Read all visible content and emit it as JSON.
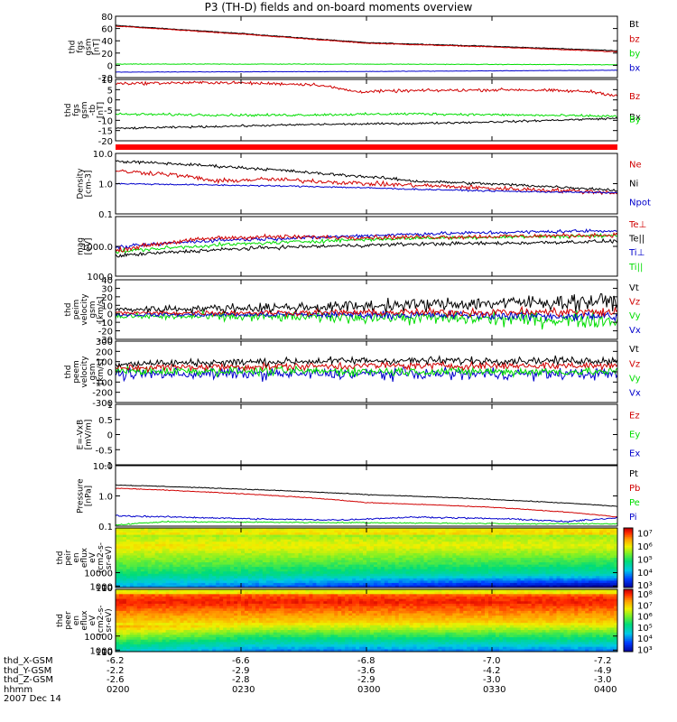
{
  "title": "P3 (TH-D) fields and on-board moments overview",
  "colors": {
    "black": "#000000",
    "red": "#d00000",
    "green": "#00dd00",
    "blue": "#0000cc",
    "bar": "#ff0000"
  },
  "chart_data": [
    {
      "type": "line",
      "name": "fgs_gsm",
      "ylabel": [
        "thd",
        "fgs",
        "gsm",
        "[nT]"
      ],
      "ylim": [
        -20,
        80
      ],
      "yticks": [
        -20,
        0,
        20,
        40,
        60,
        80
      ],
      "legend": [
        "Bt",
        "bz",
        "by",
        "bx"
      ],
      "series": [
        {
          "name": "Bt",
          "color": "black",
          "pts": [
            [
              0,
              65
            ],
            [
              0.25,
              52
            ],
            [
              0.5,
              37
            ],
            [
              0.75,
              31
            ],
            [
              1,
              24
            ]
          ],
          "noise": 0.5
        },
        {
          "name": "bz",
          "color": "red",
          "pts": [
            [
              0,
              64
            ],
            [
              0.25,
              51
            ],
            [
              0.5,
              36
            ],
            [
              0.75,
              30
            ],
            [
              1,
              22
            ]
          ],
          "noise": 0.5
        },
        {
          "name": "by",
          "color": "green",
          "pts": [
            [
              0,
              2
            ],
            [
              0.5,
              2
            ],
            [
              1,
              1
            ]
          ],
          "noise": 0.4
        },
        {
          "name": "bx",
          "color": "blue",
          "pts": [
            [
              0,
              -11
            ],
            [
              0.5,
              -10
            ],
            [
              1,
              -8
            ]
          ],
          "noise": 0.3
        }
      ]
    },
    {
      "type": "line",
      "name": "fgs_gse",
      "ylabel": [
        "thd",
        "fgs",
        "gsm",
        "-tb",
        "[nT]"
      ],
      "ylim": [
        -20,
        10
      ],
      "yticks": [
        -20,
        -15,
        -10,
        -5,
        0,
        5,
        10
      ],
      "legend": [
        "Bz",
        "Bx",
        "By"
      ],
      "series": [
        {
          "name": "Bz",
          "color": "red",
          "pts": [
            [
              0,
              8
            ],
            [
              0.2,
              8.5
            ],
            [
              0.4,
              7.5
            ],
            [
              0.48,
              4
            ],
            [
              0.6,
              4.5
            ],
            [
              0.8,
              5
            ],
            [
              0.95,
              4
            ],
            [
              1,
              2
            ]
          ],
          "noise": 0.6
        },
        {
          "name": "By",
          "color": "green",
          "pts": [
            [
              0,
              -7
            ],
            [
              0.3,
              -7.5
            ],
            [
              0.6,
              -6.8
            ],
            [
              1,
              -8
            ]
          ],
          "noise": 0.5
        },
        {
          "name": "Bx",
          "color": "black",
          "pts": [
            [
              0,
              -14
            ],
            [
              0.2,
              -13
            ],
            [
              0.4,
              -12
            ],
            [
              0.6,
              -11.5
            ],
            [
              0.8,
              -10.5
            ],
            [
              1,
              -9
            ]
          ],
          "noise": 0.4
        }
      ]
    },
    {
      "type": "line",
      "name": "density",
      "log": true,
      "ylabel": [
        "Density",
        "[cm-3]"
      ],
      "ylim": [
        0.1,
        10
      ],
      "yticks": [
        0.1,
        1.0,
        10.0
      ],
      "legend": [
        "Ne",
        "Ni",
        "Npot"
      ],
      "series": [
        {
          "name": "Ni",
          "color": "black",
          "pts": [
            [
              0,
              5.5
            ],
            [
              0.2,
              3.8
            ],
            [
              0.4,
              2.2
            ],
            [
              0.6,
              1.2
            ],
            [
              0.8,
              0.9
            ],
            [
              1,
              0.6
            ]
          ],
          "noise": 0.04
        },
        {
          "name": "Ne",
          "color": "red",
          "pts": [
            [
              0,
              2.6
            ],
            [
              0.1,
              2.1
            ],
            [
              0.2,
              1.2
            ],
            [
              0.3,
              1.4
            ],
            [
              0.5,
              1.0
            ],
            [
              0.75,
              0.7
            ],
            [
              1,
              0.5
            ]
          ],
          "noise": 0.06
        },
        {
          "name": "Npot",
          "color": "blue",
          "pts": [
            [
              0,
              1.0
            ],
            [
              0.2,
              0.9
            ],
            [
              0.4,
              0.8
            ],
            [
              0.6,
              0.65
            ],
            [
              0.8,
              0.55
            ],
            [
              1,
              0.5
            ]
          ],
          "noise": 0.02
        }
      ]
    },
    {
      "type": "line",
      "name": "temperature",
      "log": true,
      "ylabel": [
        "mag",
        "[eV]"
      ],
      "ylim": [
        100,
        10000
      ],
      "yticks": [
        100,
        1000
      ],
      "legend": [
        "Te⊥",
        "Te||",
        "Ti⊥",
        "Ti||"
      ],
      "series": [
        {
          "name": "Te||",
          "color": "black",
          "pts": [
            [
              0,
              480
            ],
            [
              0.3,
              900
            ],
            [
              0.6,
              1200
            ],
            [
              0.8,
              1300
            ],
            [
              1,
              1500
            ]
          ],
          "noise": 0.05
        },
        {
          "name": "Ti⊥",
          "color": "blue",
          "pts": [
            [
              0,
              900
            ],
            [
              0.2,
              1600
            ],
            [
              0.4,
              2000
            ],
            [
              0.6,
              2600
            ],
            [
              0.8,
              3000
            ],
            [
              1,
              3400
            ]
          ],
          "noise": 0.05
        },
        {
          "name": "Ti||",
          "color": "green",
          "pts": [
            [
              0,
              650
            ],
            [
              0.2,
              1100
            ],
            [
              0.4,
              1500
            ],
            [
              0.6,
              1900
            ],
            [
              0.8,
              2100
            ],
            [
              1,
              2300
            ]
          ],
          "noise": 0.05
        },
        {
          "name": "Te⊥",
          "color": "red",
          "pts": [
            [
              0,
              700
            ],
            [
              0.2,
              1900
            ],
            [
              0.3,
              2100
            ],
            [
              0.5,
              2000
            ],
            [
              0.7,
              2100
            ],
            [
              1,
              2400
            ]
          ],
          "noise": 0.06
        }
      ]
    },
    {
      "type": "line",
      "name": "velocity_dsl",
      "ylabel": [
        "thd",
        "peim",
        "velocity",
        "gsm",
        "[km/s]"
      ],
      "ylim": [
        -30,
        40
      ],
      "yticks": [
        -30,
        -20,
        -10,
        0,
        10,
        20,
        30,
        40
      ],
      "legend": [
        "Vt",
        "Vz",
        "Vy",
        "Vx"
      ],
      "series": [
        {
          "name": "Vy",
          "color": "green",
          "pts": [
            [
              0,
              -3
            ],
            [
              0.5,
              -4
            ],
            [
              0.9,
              -7
            ],
            [
              1,
              -8
            ]
          ],
          "noise": 5
        },
        {
          "name": "Vx",
          "color": "blue",
          "pts": [
            [
              0,
              -1
            ],
            [
              0.5,
              -1
            ],
            [
              1,
              -3
            ]
          ],
          "noise": 3
        },
        {
          "name": "Vz",
          "color": "red",
          "pts": [
            [
              0,
              1
            ],
            [
              0.5,
              1.5
            ],
            [
              1,
              2
            ]
          ],
          "noise": 3
        },
        {
          "name": "Vt",
          "color": "black",
          "pts": [
            [
              0,
              5
            ],
            [
              0.4,
              8
            ],
            [
              0.7,
              12
            ],
            [
              1,
              15
            ]
          ],
          "noise": 5
        }
      ]
    },
    {
      "type": "line",
      "name": "velocity_gsm",
      "ylabel": [
        "thd",
        "peem",
        "velocity",
        "gsm",
        "[km/s]"
      ],
      "ylim": [
        -300,
        300
      ],
      "yticks": [
        -300,
        -200,
        -100,
        0,
        100,
        200,
        300
      ],
      "legend": [
        "Vt",
        "Vz",
        "Vy",
        "Vx"
      ],
      "series": [
        {
          "name": "Vx",
          "color": "blue",
          "pts": [
            [
              0,
              -20
            ],
            [
              0.5,
              -20
            ],
            [
              1,
              -20
            ]
          ],
          "noise": 45
        },
        {
          "name": "Vy",
          "color": "green",
          "pts": [
            [
              0,
              10
            ],
            [
              0.5,
              5
            ],
            [
              1,
              0
            ]
          ],
          "noise": 35
        },
        {
          "name": "Vz",
          "color": "red",
          "pts": [
            [
              0,
              40
            ],
            [
              0.5,
              60
            ],
            [
              1,
              60
            ]
          ],
          "noise": 30
        },
        {
          "name": "Vt",
          "color": "black",
          "pts": [
            [
              0,
              80
            ],
            [
              0.5,
              110
            ],
            [
              1,
              110
            ]
          ],
          "noise": 30
        }
      ]
    },
    {
      "type": "line",
      "name": "efield",
      "ylabel": [
        "E=-VxB",
        "[mV/m]"
      ],
      "ylim": [
        -1.0,
        1.0
      ],
      "yticks": [
        -1.0,
        -0.5,
        0.0,
        0.5,
        1.0
      ],
      "legend": [
        "Ez",
        "Ey",
        "Ex"
      ],
      "series": []
    },
    {
      "type": "line",
      "name": "pressure",
      "log": true,
      "ylabel": [
        "Pressure",
        "[nPa]"
      ],
      "ylim": [
        0.1,
        10
      ],
      "yticks": [
        0.1,
        1.0,
        10.0
      ],
      "legend": [
        "Pt",
        "Pb",
        "Pe",
        "Pi"
      ],
      "series": [
        {
          "name": "Pt",
          "color": "black",
          "pts": [
            [
              0,
              2.3
            ],
            [
              0.2,
              1.8
            ],
            [
              0.5,
              1.1
            ],
            [
              0.8,
              0.7
            ],
            [
              1,
              0.45
            ]
          ],
          "noise": 0.01
        },
        {
          "name": "Pb",
          "color": "red",
          "pts": [
            [
              0,
              1.8
            ],
            [
              0.2,
              1.3
            ],
            [
              0.5,
              0.6
            ],
            [
              0.75,
              0.42
            ],
            [
              1,
              0.2
            ]
          ],
          "noise": 0.01
        },
        {
          "name": "Pi",
          "color": "blue",
          "pts": [
            [
              0,
              0.22
            ],
            [
              0.3,
              0.17
            ],
            [
              0.45,
              0.16
            ],
            [
              0.6,
              0.2
            ],
            [
              0.8,
              0.17
            ],
            [
              0.9,
              0.14
            ],
            [
              1,
              0.19
            ]
          ],
          "noise": 0.02
        },
        {
          "name": "Pe",
          "color": "green",
          "pts": [
            [
              0,
              0.11
            ],
            [
              0.1,
              0.14
            ],
            [
              0.5,
              0.13
            ],
            [
              0.8,
              0.12
            ],
            [
              1,
              0.12
            ]
          ],
          "noise": 0.015
        }
      ]
    },
    {
      "type": "heatmap",
      "name": "ion_eflux",
      "ylabel": [
        "thd",
        "peir",
        "en",
        "eflux",
        "eV",
        "(cm2-s-",
        "sr-eV)"
      ],
      "ylim": [
        5,
        40000
      ],
      "yticks": [
        10,
        100,
        1000,
        10000
      ],
      "colorbar": {
        "ticks": [
          "10³",
          "10⁴",
          "10⁵",
          "10⁶",
          "10⁷"
        ]
      }
    },
    {
      "type": "heatmap",
      "name": "electron_eflux",
      "ylabel": [
        "thd",
        "peer",
        "en",
        "eflux",
        "eV",
        "(cm2-s-",
        "sr-eV)"
      ],
      "ylim": [
        5,
        40000
      ],
      "yticks": [
        10,
        100,
        1000,
        10000
      ],
      "colorbar": {
        "ticks": [
          "10³",
          "10⁴",
          "10⁵",
          "10⁶",
          "10⁷",
          "10⁸"
        ]
      }
    }
  ],
  "red_bar_label": "",
  "orbit": {
    "rows": [
      {
        "label": "thd_X-GSM",
        "values": [
          "-6.2",
          "-6.6",
          "-6.8",
          "-7.0",
          "-7.2"
        ]
      },
      {
        "label": "thd_Y-GSM",
        "values": [
          "-2.2",
          "-2.9",
          "-3.6",
          "-4.2",
          "-4.9"
        ]
      },
      {
        "label": "thd_Z-GSM",
        "values": [
          "-2.6",
          "-2.8",
          "-2.9",
          "-3.0",
          "-3.0"
        ]
      },
      {
        "label": "hhmm",
        "values": [
          "0200",
          "0230",
          "0300",
          "0330",
          "0400"
        ]
      }
    ],
    "date": "2007 Dec 14"
  }
}
